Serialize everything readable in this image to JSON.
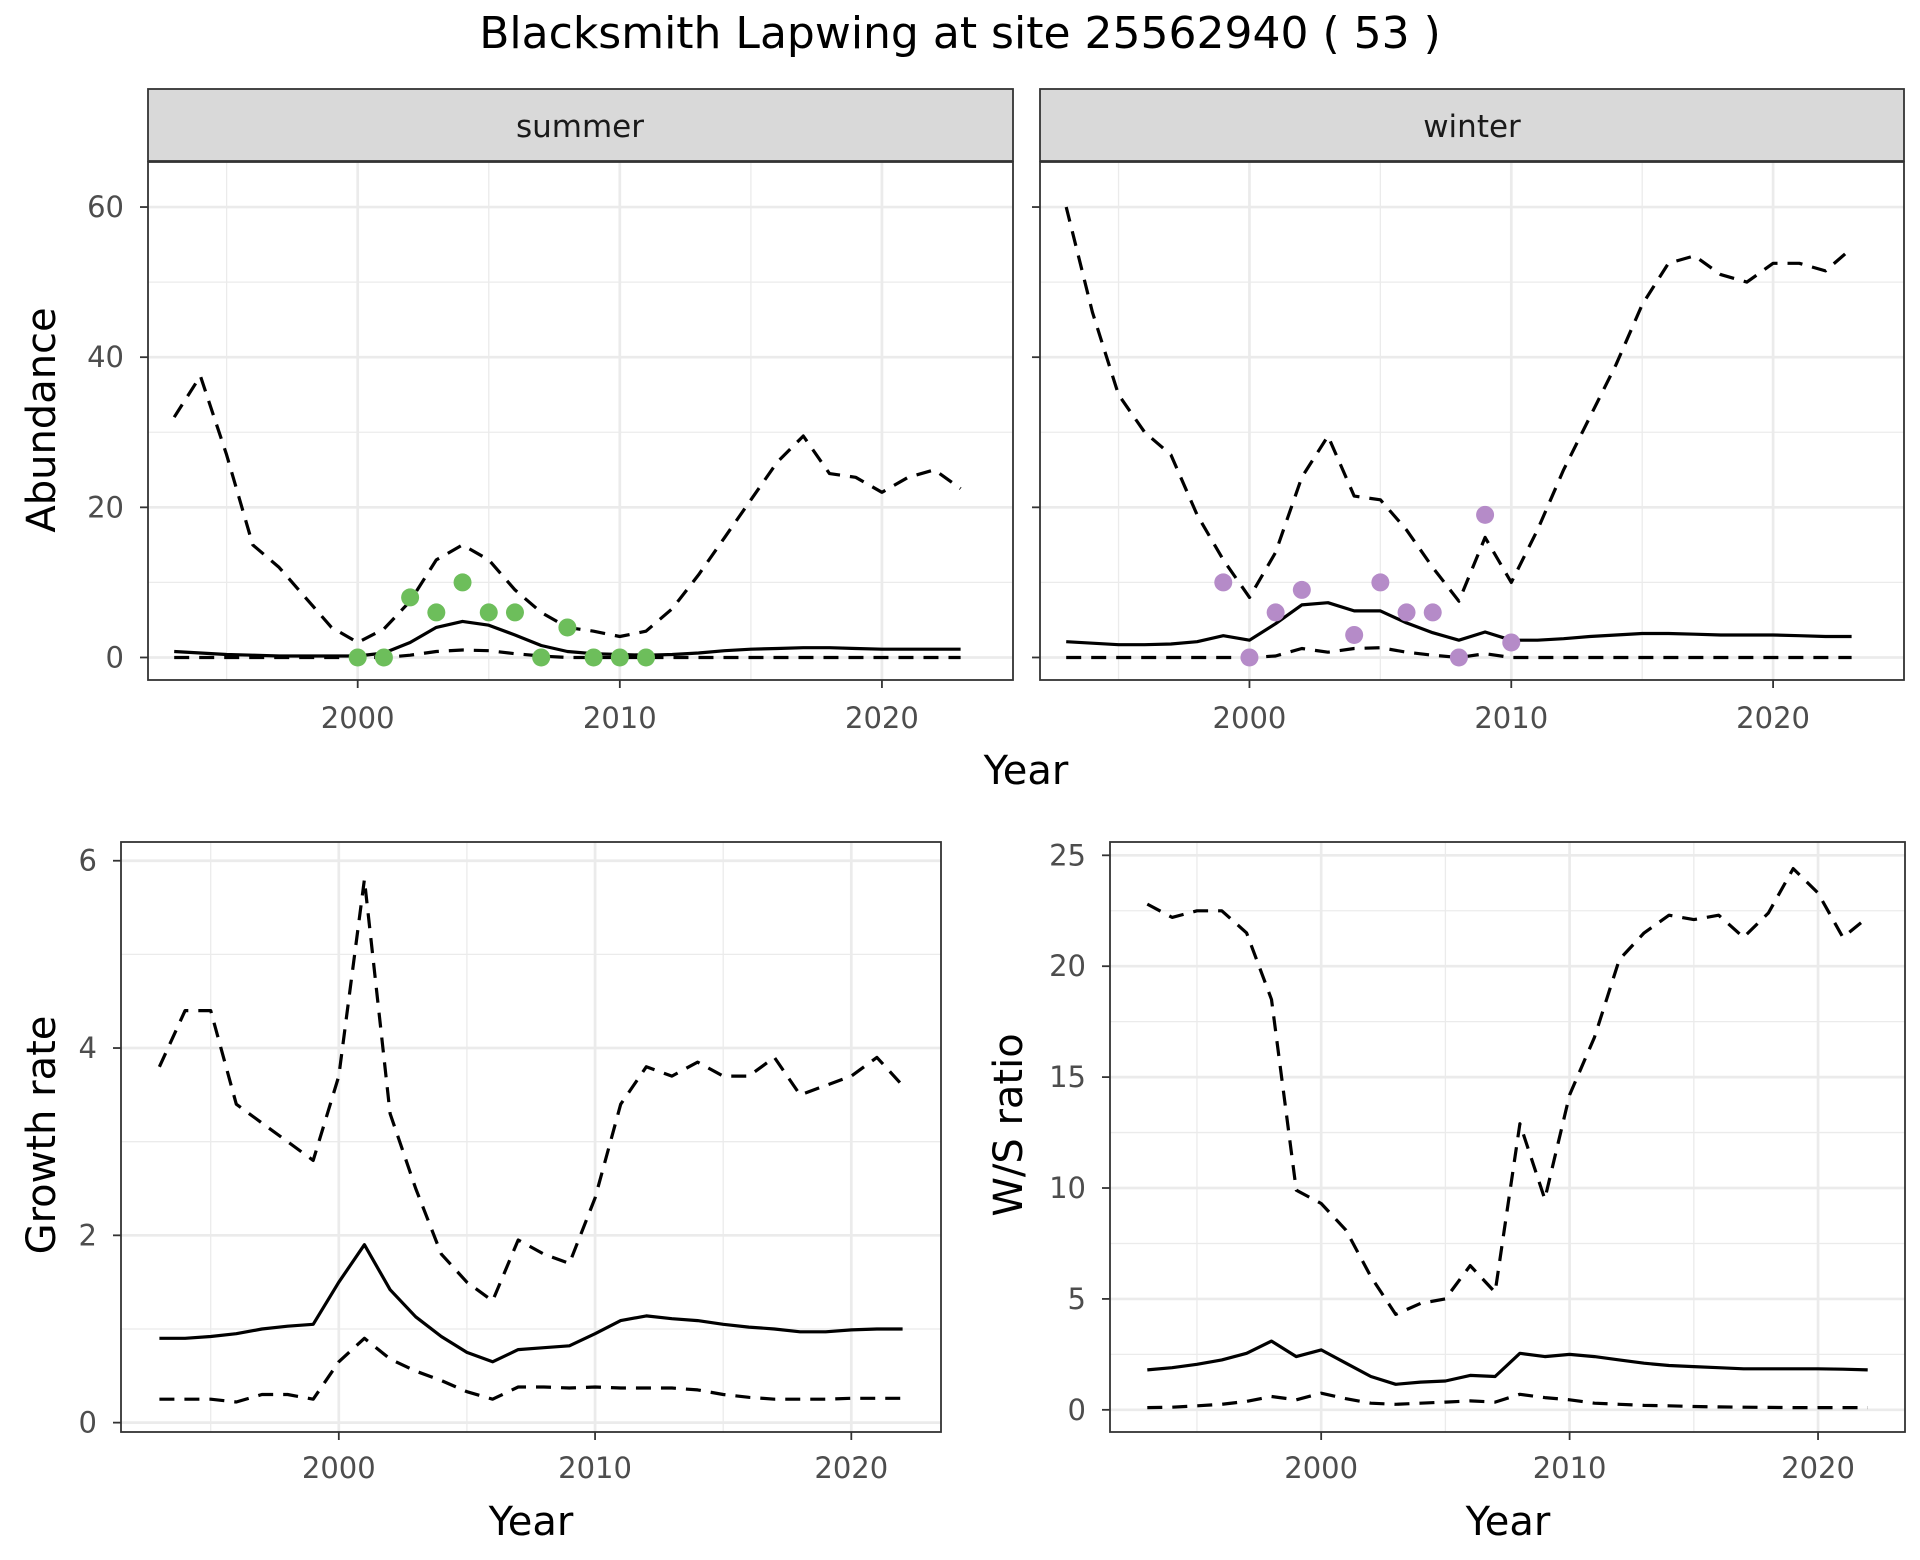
{
  "title": "Blacksmith Lapwing at site 25562940 ( 53 )",
  "colors": {
    "summer_points": "#6DBE5B",
    "winter_points": "#B58BC8",
    "line": "#000000",
    "strip_bg": "#D9D9D9"
  },
  "chart_data": [
    {
      "type": "line",
      "facet": "summer",
      "xlabel": "Year",
      "ylabel": "Abundance",
      "xlim": [
        1992,
        2025
      ],
      "ylim": [
        -3,
        66
      ],
      "xticks": [
        2000,
        2010,
        2020
      ],
      "yticks": [
        0,
        20,
        40,
        60
      ],
      "grid": true,
      "x": [
        1993,
        1994,
        1995,
        1996,
        1997,
        1998,
        1999,
        2000,
        2001,
        2002,
        2003,
        2004,
        2005,
        2006,
        2007,
        2008,
        2009,
        2010,
        2011,
        2012,
        2013,
        2014,
        2015,
        2016,
        2017,
        2018,
        2019,
        2020,
        2021,
        2022,
        2023
      ],
      "series": [
        {
          "role": "upper",
          "style": "dashed",
          "values": [
            32,
            37.5,
            27,
            15,
            12,
            8,
            4,
            2,
            3.8,
            7.5,
            13,
            15,
            13,
            9,
            6,
            4,
            3.5,
            2.8,
            3.5,
            6.5,
            11,
            16,
            21,
            26,
            29.5,
            24.5,
            24,
            22,
            24,
            25,
            22.5
          ]
        },
        {
          "role": "median",
          "style": "solid",
          "values": [
            0.8,
            0.6,
            0.4,
            0.3,
            0.2,
            0.2,
            0.2,
            0.2,
            0.6,
            2,
            4,
            4.8,
            4.3,
            3,
            1.6,
            0.8,
            0.5,
            0.4,
            0.3,
            0.4,
            0.6,
            0.9,
            1.1,
            1.2,
            1.3,
            1.3,
            1.2,
            1.1,
            1.1,
            1.1,
            1.1
          ]
        },
        {
          "role": "lower",
          "style": "dashed",
          "values": [
            0,
            0,
            0,
            0,
            0,
            0,
            0,
            0,
            0,
            0.3,
            0.8,
            1,
            0.9,
            0.5,
            0.2,
            0,
            0,
            0,
            0,
            0,
            0,
            0,
            0,
            0,
            0,
            0,
            0,
            0,
            0,
            0,
            0
          ]
        }
      ],
      "points": {
        "x": [
          2000,
          2001,
          2002,
          2003,
          2004,
          2005,
          2006,
          2007,
          2008,
          2009,
          2010,
          2011
        ],
        "y": [
          0,
          0,
          8,
          6,
          10,
          6,
          6,
          0,
          4,
          0,
          0,
          0
        ]
      }
    },
    {
      "type": "line",
      "facet": "winter",
      "xlabel": "Year",
      "ylabel": "Abundance",
      "xlim": [
        1992,
        2025
      ],
      "ylim": [
        -3,
        66
      ],
      "xticks": [
        2000,
        2010,
        2020
      ],
      "yticks": [
        0,
        20,
        40,
        60
      ],
      "grid": true,
      "x": [
        1993,
        1994,
        1995,
        1996,
        1997,
        1998,
        1999,
        2000,
        2001,
        2002,
        2003,
        2004,
        2005,
        2006,
        2007,
        2008,
        2009,
        2010,
        2011,
        2012,
        2013,
        2014,
        2015,
        2016,
        2017,
        2018,
        2019,
        2020,
        2021,
        2022,
        2023
      ],
      "series": [
        {
          "role": "upper",
          "style": "dashed",
          "values": [
            60,
            46,
            35,
            30,
            27,
            19,
            13,
            8,
            14,
            24,
            29.5,
            21.5,
            21,
            17,
            12,
            7.5,
            16,
            10,
            17,
            25,
            32,
            39,
            47,
            52.5,
            53.5,
            51,
            50,
            52.5,
            52.5,
            51.5,
            54.5
          ]
        },
        {
          "role": "median",
          "style": "solid",
          "values": [
            2.1,
            1.9,
            1.7,
            1.7,
            1.8,
            2.1,
            2.9,
            2.3,
            4.5,
            7,
            7.3,
            6.2,
            6.2,
            4.6,
            3.3,
            2.3,
            3.4,
            2.3,
            2.3,
            2.5,
            2.8,
            3,
            3.2,
            3.2,
            3.1,
            3,
            3,
            3,
            2.9,
            2.8,
            2.8
          ]
        },
        {
          "role": "lower",
          "style": "dashed",
          "values": [
            0,
            0,
            0,
            0,
            0,
            0,
            0,
            0,
            0.2,
            1.2,
            0.7,
            1.2,
            1.3,
            0.7,
            0.3,
            0,
            0.5,
            0,
            0,
            0,
            0,
            0,
            0,
            0,
            0,
            0,
            0,
            0,
            0,
            0,
            0
          ]
        }
      ],
      "points": {
        "x": [
          1999,
          2000,
          2001,
          2002,
          2004,
          2005,
          2006,
          2007,
          2008,
          2009,
          2010
        ],
        "y": [
          10,
          0,
          6,
          9,
          3,
          10,
          6,
          6,
          0,
          19,
          2
        ]
      }
    },
    {
      "type": "line",
      "xlabel": "Year",
      "ylabel": "Growth rate",
      "xlim": [
        1991.5,
        2023.5
      ],
      "ylim": [
        -0.1,
        6.2
      ],
      "xticks": [
        2000,
        2010,
        2020
      ],
      "yticks": [
        0,
        2,
        4,
        6
      ],
      "grid": true,
      "x": [
        1993,
        1994,
        1995,
        1996,
        1997,
        1998,
        1999,
        2000,
        2001,
        2002,
        2003,
        2004,
        2005,
        2006,
        2007,
        2008,
        2009,
        2010,
        2011,
        2012,
        2013,
        2014,
        2015,
        2016,
        2017,
        2018,
        2019,
        2020,
        2021,
        2022
      ],
      "series": [
        {
          "role": "upper",
          "style": "dashed",
          "values": [
            3.8,
            4.4,
            4.4,
            3.4,
            3.2,
            3,
            2.8,
            3.7,
            5.8,
            3.3,
            2.5,
            1.8,
            1.5,
            1.3,
            1.95,
            1.8,
            1.7,
            2.4,
            3.4,
            3.8,
            3.7,
            3.85,
            3.7,
            3.7,
            3.9,
            3.5,
            3.6,
            3.7,
            3.9,
            3.6
          ]
        },
        {
          "role": "median",
          "style": "solid",
          "values": [
            0.9,
            0.9,
            0.92,
            0.95,
            1,
            1.03,
            1.05,
            1.5,
            1.9,
            1.42,
            1.13,
            0.92,
            0.75,
            0.65,
            0.78,
            0.8,
            0.82,
            0.95,
            1.09,
            1.14,
            1.11,
            1.09,
            1.05,
            1.02,
            1,
            0.97,
            0.97,
            0.99,
            1,
            1
          ]
        },
        {
          "role": "lower",
          "style": "dashed",
          "values": [
            0.25,
            0.25,
            0.25,
            0.22,
            0.3,
            0.3,
            0.25,
            0.65,
            0.9,
            0.68,
            0.55,
            0.45,
            0.33,
            0.25,
            0.38,
            0.38,
            0.37,
            0.38,
            0.37,
            0.37,
            0.37,
            0.35,
            0.3,
            0.27,
            0.25,
            0.25,
            0.25,
            0.26,
            0.26,
            0.26
          ]
        }
      ]
    },
    {
      "type": "line",
      "xlabel": "Year",
      "ylabel": "W/S ratio",
      "xlim": [
        1991.5,
        2023.5
      ],
      "ylim": [
        -1,
        25.6
      ],
      "xticks": [
        2000,
        2010,
        2020
      ],
      "yticks": [
        0,
        5,
        10,
        15,
        20,
        25
      ],
      "grid": true,
      "x": [
        1993,
        1994,
        1995,
        1996,
        1997,
        1998,
        1999,
        2000,
        2001,
        2002,
        2003,
        2004,
        2005,
        2006,
        2007,
        2008,
        2009,
        2010,
        2011,
        2012,
        2013,
        2014,
        2015,
        2016,
        2017,
        2018,
        2019,
        2020,
        2021,
        2022
      ],
      "series": [
        {
          "role": "upper",
          "style": "dashed",
          "values": [
            22.8,
            22.2,
            22.5,
            22.5,
            21.5,
            18.5,
            9.9,
            9.3,
            8.1,
            6,
            4.3,
            4.8,
            5,
            6.5,
            5.3,
            12.9,
            9.5,
            14.2,
            16.8,
            20.3,
            21.5,
            22.3,
            22.1,
            22.3,
            21.3,
            22.4,
            24.4,
            23.3,
            21.3,
            22.2
          ]
        },
        {
          "role": "median",
          "style": "solid",
          "values": [
            1.8,
            1.9,
            2.05,
            2.25,
            2.55,
            3.1,
            2.4,
            2.7,
            2.1,
            1.5,
            1.15,
            1.25,
            1.3,
            1.55,
            1.5,
            2.55,
            2.4,
            2.5,
            2.4,
            2.25,
            2.1,
            2,
            1.95,
            1.9,
            1.85,
            1.85,
            1.85,
            1.85,
            1.83,
            1.8
          ]
        },
        {
          "role": "lower",
          "style": "dashed",
          "values": [
            0.1,
            0.12,
            0.18,
            0.25,
            0.38,
            0.6,
            0.45,
            0.75,
            0.5,
            0.3,
            0.25,
            0.3,
            0.35,
            0.4,
            0.35,
            0.7,
            0.55,
            0.45,
            0.3,
            0.25,
            0.2,
            0.18,
            0.15,
            0.13,
            0.12,
            0.11,
            0.1,
            0.1,
            0.1,
            0.1
          ]
        }
      ]
    }
  ]
}
